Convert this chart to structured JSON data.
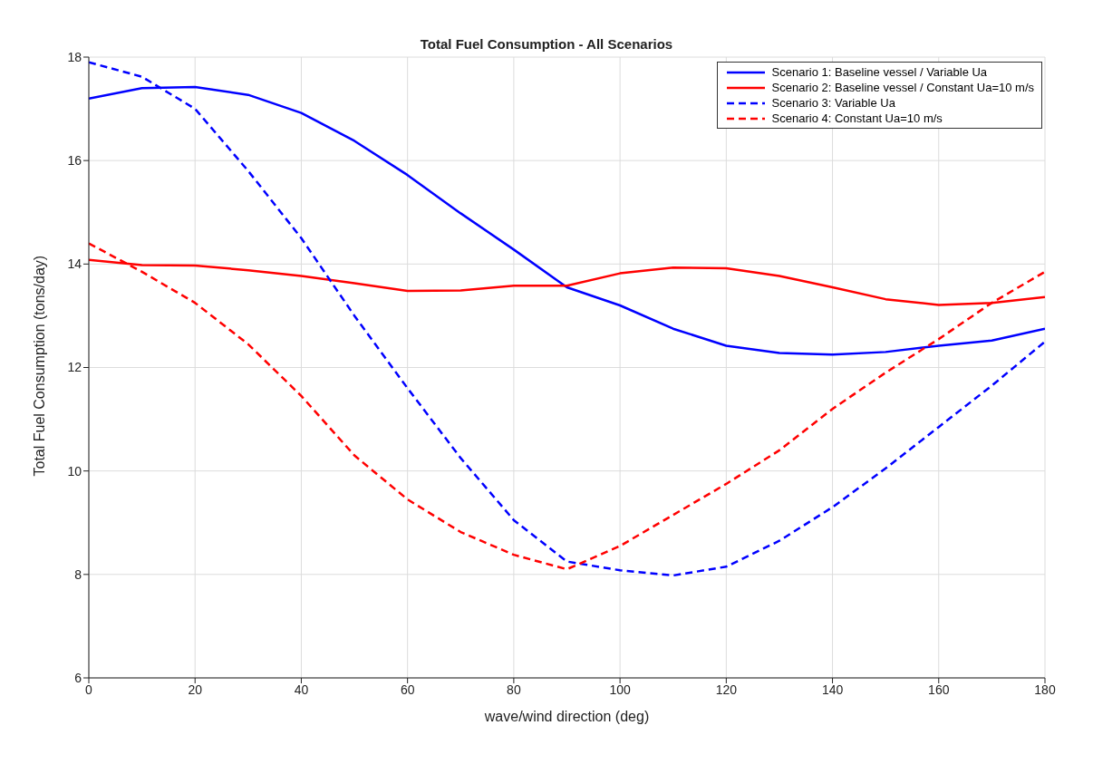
{
  "chart_data": {
    "type": "line",
    "title": "Total Fuel Consumption - All Scenarios",
    "xlabel": "wave/wind direction (deg)",
    "ylabel": "Total Fuel Consumption (tons/day)",
    "x": [
      0,
      10,
      20,
      30,
      40,
      50,
      60,
      70,
      80,
      90,
      100,
      110,
      120,
      130,
      140,
      150,
      160,
      170,
      180
    ],
    "series": [
      {
        "name": "Scenario 1: Baseline vessel / Variable Ua",
        "color": "#0000ff",
        "line_style": "solid",
        "values": [
          17.2,
          17.4,
          17.42,
          17.27,
          16.92,
          16.38,
          15.72,
          14.98,
          14.28,
          13.55,
          13.2,
          12.75,
          12.42,
          12.28,
          12.25,
          12.3,
          12.42,
          12.52,
          12.75
        ]
      },
      {
        "name": "Scenario 2: Baseline vessel / Constant Ua=10 m/s",
        "color": "#ff0000",
        "line_style": "solid",
        "values": [
          14.08,
          13.98,
          13.97,
          13.88,
          13.77,
          13.63,
          13.48,
          13.49,
          13.58,
          13.58,
          13.82,
          13.93,
          13.92,
          13.77,
          13.55,
          13.32,
          13.21,
          13.25,
          13.36
        ]
      },
      {
        "name": "Scenario 3: Variable Ua",
        "color": "#0000ff",
        "line_style": "dashed",
        "values": [
          17.9,
          17.62,
          17.0,
          15.8,
          14.5,
          13.0,
          11.6,
          10.25,
          9.05,
          8.25,
          8.08,
          7.98,
          8.15,
          8.65,
          9.3,
          10.05,
          10.85,
          11.65,
          12.5
        ]
      },
      {
        "name": "Scenario 4: Constant Ua=10 m/s",
        "color": "#ff0000",
        "line_style": "dashed",
        "values": [
          14.4,
          13.85,
          13.25,
          12.45,
          11.45,
          10.3,
          9.45,
          8.82,
          8.38,
          8.1,
          8.55,
          9.15,
          9.75,
          10.4,
          11.2,
          11.9,
          12.55,
          13.25,
          13.85
        ]
      }
    ],
    "xlim": [
      0,
      180
    ],
    "xticks": [
      0,
      20,
      40,
      60,
      80,
      100,
      120,
      140,
      160,
      180
    ],
    "ylim": [
      6,
      18
    ],
    "yticks": [
      6,
      8,
      10,
      12,
      14,
      16,
      18
    ],
    "grid": true,
    "legend": "top right",
    "marker": "none"
  }
}
